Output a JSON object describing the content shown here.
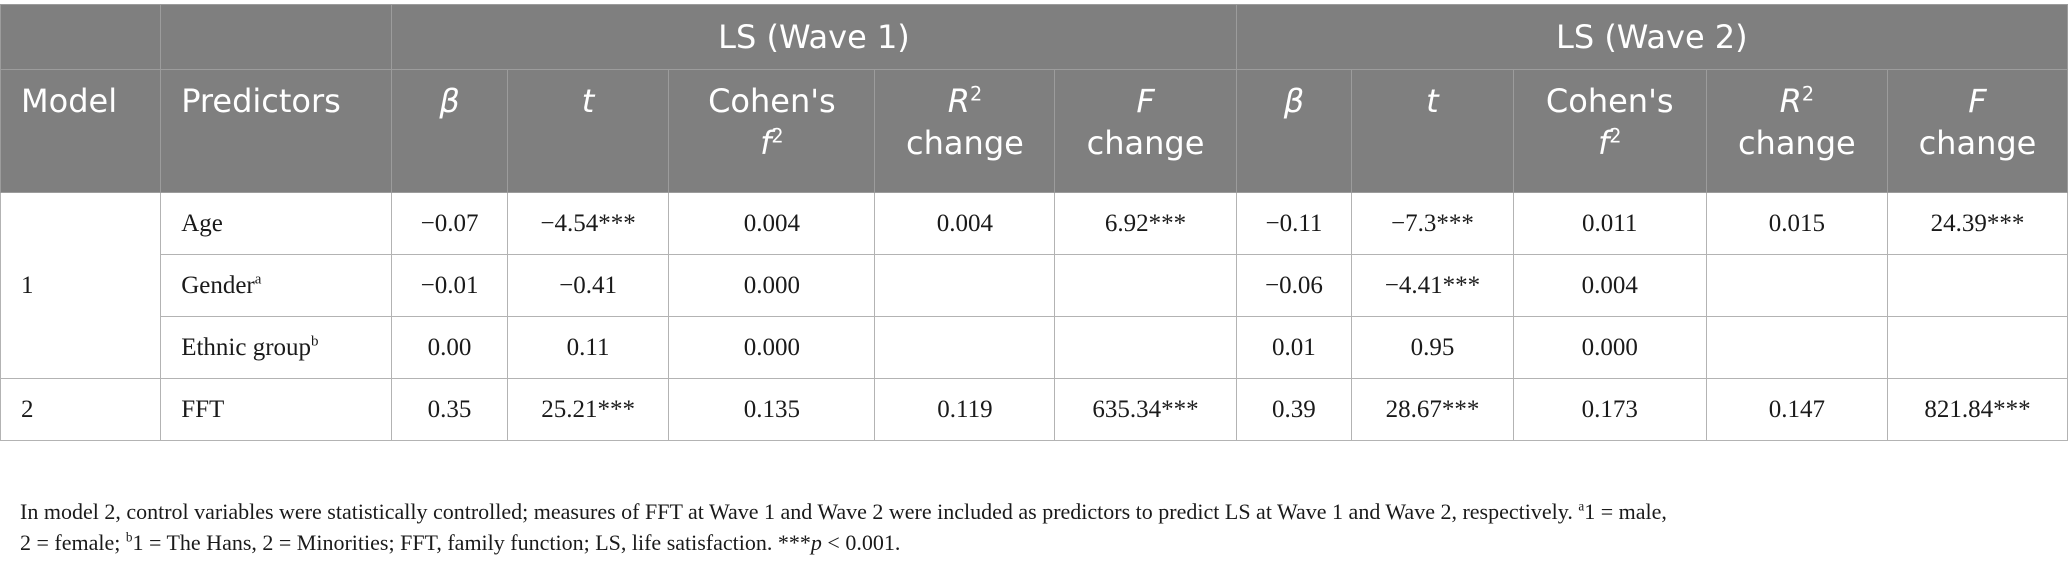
{
  "table": {
    "group_headers": [
      "LS (Wave 1)",
      "LS (Wave 2)"
    ],
    "headers": {
      "model": "Model",
      "predictors": "Predictors",
      "beta": "β",
      "t": "t",
      "cohens_pre": "Cohen's",
      "cohens_f": "f",
      "cohens_sup": "2",
      "r": "R",
      "r_sup": "2",
      "r_change": "change",
      "f": "F",
      "f_change": "change"
    },
    "rows": [
      {
        "model": "1",
        "predictor": "Age",
        "pred_sup": "",
        "w1": {
          "beta": "−0.07",
          "t": "−4.54***",
          "f2": "0.004",
          "r2": "0.004",
          "F": "6.92***"
        },
        "w2": {
          "beta": "−0.11",
          "t": "−7.3***",
          "f2": "0.011",
          "r2": "0.015",
          "F": "24.39***"
        }
      },
      {
        "predictor": "Gender",
        "pred_sup": "a",
        "w1": {
          "beta": "−0.01",
          "t": "−0.41",
          "f2": "0.000",
          "r2": "",
          "F": ""
        },
        "w2": {
          "beta": "−0.06",
          "t": "−4.41***",
          "f2": "0.004",
          "r2": "",
          "F": ""
        }
      },
      {
        "predictor": "Ethnic group",
        "pred_sup": "b",
        "w1": {
          "beta": "0.00",
          "t": "0.11",
          "f2": "0.000",
          "r2": "",
          "F": ""
        },
        "w2": {
          "beta": "0.01",
          "t": "0.95",
          "f2": "0.000",
          "r2": "",
          "F": ""
        }
      },
      {
        "model": "2",
        "predictor": "FFT",
        "pred_sup": "",
        "w1": {
          "beta": "0.35",
          "t": "25.21***",
          "f2": "0.135",
          "r2": "0.119",
          "F": "635.34***"
        },
        "w2": {
          "beta": "0.39",
          "t": "28.67***",
          "f2": "0.173",
          "r2": "0.147",
          "F": "821.84***"
        }
      }
    ]
  },
  "note": {
    "line1_text": "In model 2, control variables were statistically controlled; measures of FFT at Wave 1 and Wave 2 were included as predictors to predict LS at Wave 1 and Wave 2, respectively. ",
    "line1_sup": "a",
    "line1_end": "1 = male,",
    "line2_start": "2 = female; ",
    "line2_sup": "b",
    "line2_text": "1 = The Hans, 2 = Minorities; FFT, family function; LS, life satisfaction. ***",
    "line2_p": "p",
    "line2_end": " < 0.001."
  }
}
